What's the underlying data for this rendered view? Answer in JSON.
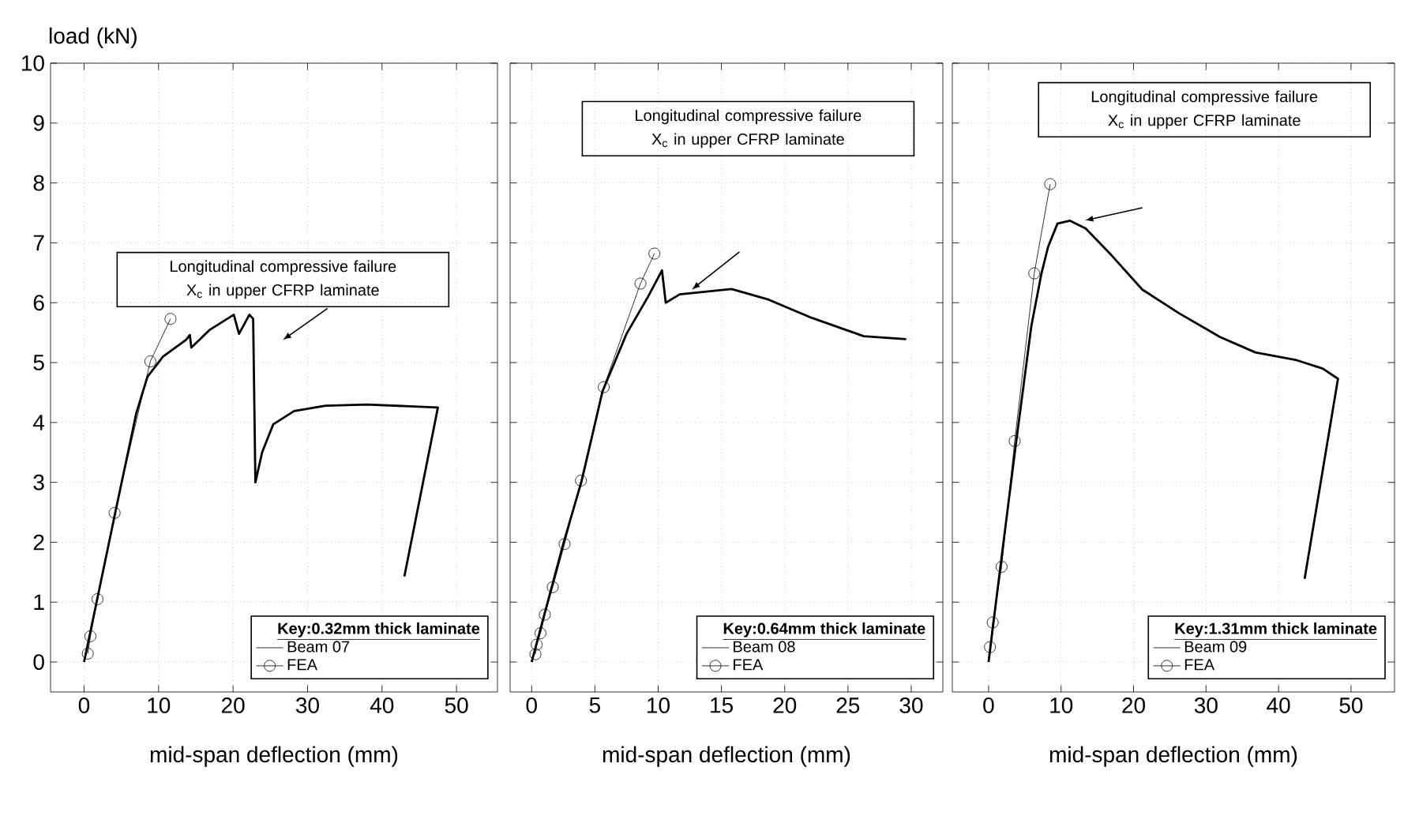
{
  "chart_data": [
    {
      "type": "line",
      "ylabel": "load (kN)",
      "xlabel": "mid-span deflection (mm)",
      "legend_title": "Key:0.32mm thick laminate",
      "legend": "bottom right",
      "grid": true,
      "xlim": [
        -4.5,
        55.5
      ],
      "ylim": [
        -0.5,
        10
      ],
      "xticks": [
        0,
        10,
        20,
        30,
        40,
        50
      ],
      "yticks": [
        0,
        1,
        2,
        3,
        4,
        5,
        6,
        7,
        8,
        9,
        10
      ],
      "annotations": [
        "Longitudinal compressive failure X$_{c}$ in upper CFRP laminate"
      ],
      "series": [
        {
          "name": "Beam 07",
          "color": "#000000",
          "marker": "none",
          "x": [
            0,
            4.2,
            7,
            8.5,
            10.6,
            13.7,
            14.2,
            14.4,
            16.9,
            20.1,
            20.8,
            22.2,
            22.7,
            23,
            23.9,
            25.4,
            28.2,
            32.4,
            38,
            47.5,
            43
          ],
          "values": [
            0,
            2.5,
            4.15,
            4.76,
            5.1,
            5.38,
            5.46,
            5.25,
            5.55,
            5.8,
            5.48,
            5.8,
            5.73,
            3.0,
            3.5,
            3.97,
            4.19,
            4.28,
            4.3,
            4.25,
            1.43
          ]
        },
        {
          "name": "FEA",
          "color": "#000000",
          "marker": "circle",
          "x": [
            0.5,
            0.85,
            1.8,
            4.1,
            8.9,
            11.6
          ],
          "values": [
            0.14,
            0.43,
            1.05,
            2.49,
            5.02,
            5.73
          ]
        }
      ]
    },
    {
      "type": "line",
      "xlabel": "mid-span deflection (mm)",
      "legend_title": "Key:0.64mm thick laminate",
      "legend": "bottom right",
      "grid": true,
      "tick_labels": "x",
      "xlim": [
        -1.7,
        32.5
      ],
      "ylim": [
        -0.5,
        10
      ],
      "xticks": [
        0,
        5,
        10,
        15,
        20,
        25,
        30
      ],
      "yticks": [
        0,
        1,
        2,
        3,
        4,
        5,
        6,
        7,
        8,
        9,
        10
      ],
      "annotations": [
        "Longitudinal compressive failure X$_{c}$ in upper CFRP laminate"
      ],
      "series": [
        {
          "name": "Beam 08",
          "color": "#000000",
          "marker": "none",
          "x": [
            0,
            2.5,
            3.96,
            5.6,
            7.5,
            9.2,
            10.3,
            10.6,
            11.7,
            15.8,
            18.75,
            22.1,
            26.25,
            29.6
          ],
          "values": [
            0,
            1.97,
            3.03,
            4.52,
            5.48,
            6.1,
            6.54,
            6.0,
            6.14,
            6.23,
            6.05,
            5.75,
            5.44,
            5.39
          ]
        },
        {
          "name": "FEA",
          "color": "#000000",
          "marker": "circle",
          "x": [
            0.3,
            0.4,
            0.7,
            1.04,
            1.67,
            2.6,
            3.9,
            5.7,
            8.6,
            9.7
          ],
          "values": [
            0.13,
            0.29,
            0.48,
            0.79,
            1.25,
            1.97,
            3.03,
            4.59,
            6.32,
            6.82
          ]
        }
      ]
    },
    {
      "type": "line",
      "xlabel": "mid-span deflection (mm)",
      "legend_title": "Key:1.31mm thick laminate",
      "legend": "bottom right",
      "grid": true,
      "tick_labels": "x",
      "xlim": [
        -5,
        56
      ],
      "ylim": [
        -0.5,
        10
      ],
      "xticks": [
        0,
        10,
        20,
        30,
        40,
        50
      ],
      "yticks": [
        0,
        1,
        2,
        3,
        4,
        5,
        6,
        7,
        8,
        9,
        10
      ],
      "annotations": [
        "Longitudinal compressive failure X$_{c}$ in upper CFRP laminate"
      ],
      "series": [
        {
          "name": "Beam 09",
          "color": "#000000",
          "marker": "none",
          "x": [
            0,
            1.6,
            3.8,
            5.9,
            7.3,
            8.2,
            9.5,
            11.2,
            13.4,
            16.9,
            21.2,
            26.2,
            31.9,
            36.8,
            42.5,
            46.1,
            48.2,
            43.6
          ],
          "values": [
            0,
            1.56,
            3.67,
            5.61,
            6.49,
            6.93,
            7.32,
            7.37,
            7.24,
            6.8,
            6.22,
            5.83,
            5.43,
            5.17,
            5.04,
            4.9,
            4.73,
            1.39
          ]
        },
        {
          "name": "FEA",
          "color": "#000000",
          "marker": "circle",
          "x": [
            0.2,
            0.57,
            1.8,
            3.6,
            6.3,
            8.5
          ],
          "values": [
            0.25,
            0.66,
            1.59,
            3.69,
            6.49,
            7.98
          ]
        }
      ]
    }
  ]
}
